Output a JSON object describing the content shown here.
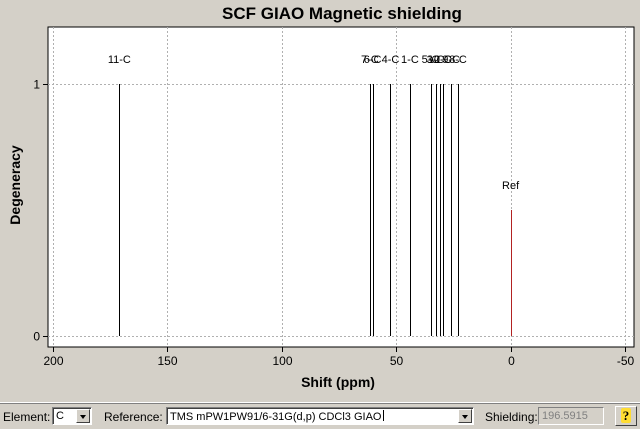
{
  "chart_data": {
    "type": "bar",
    "title": "SCF GIAO Magnetic shielding",
    "xlabel": "Shift (ppm)",
    "ylabel": "Degeneracy",
    "xlim": [
      200,
      -50
    ],
    "ylim": [
      0,
      1.2
    ],
    "xticks": [
      200,
      150,
      100,
      50,
      0,
      -50
    ],
    "yticks": [
      0,
      1
    ],
    "grid": true,
    "peaks": [
      {
        "label": "11-C",
        "x": 171.0,
        "y": 1,
        "color": "#000000",
        "show_label": true
      },
      {
        "label": "7-C",
        "x": 61.5,
        "y": 1,
        "color": "#000000",
        "show_label": true
      },
      {
        "label": "6-C",
        "x": 60.3,
        "y": 1,
        "color": "#000000",
        "show_label": true
      },
      {
        "label": "4-C",
        "x": 52.5,
        "y": 1,
        "color": "#000000",
        "show_label": true
      },
      {
        "label": "1-C",
        "x": 44.0,
        "y": 1,
        "color": "#000000",
        "show_label": true
      },
      {
        "label": "5-C",
        "x": 35.0,
        "y": 1,
        "color": "#000000",
        "show_label": true
      },
      {
        "label": "3-C",
        "x": 32.8,
        "y": 1,
        "color": "#000000",
        "show_label": true
      },
      {
        "label": "10-C",
        "x": 31.0,
        "y": 1,
        "color": "#000000",
        "show_label": true
      },
      {
        "label": "2-C",
        "x": 29.6,
        "y": 1,
        "color": "#000000",
        "show_label": true
      },
      {
        "label": "9-C",
        "x": 26.0,
        "y": 1,
        "color": "#000000",
        "show_label": true
      },
      {
        "label": "8-C",
        "x": 23.0,
        "y": 1,
        "color": "#000000",
        "show_label": true
      },
      {
        "label": "Ref",
        "x": 0,
        "y": 0.5,
        "color": "#b22222",
        "show_label": true
      }
    ]
  },
  "controls": {
    "element_label": "Element:",
    "element_value": "C",
    "reference_label": "Reference:",
    "reference_value": "TMS mPW1PW91/6-31G(d,p) CDCl3 GIAO",
    "shielding_label": "Shielding:",
    "shielding_value": "196.5915",
    "help_glyph": "?",
    "help_icon": "help-icon"
  }
}
